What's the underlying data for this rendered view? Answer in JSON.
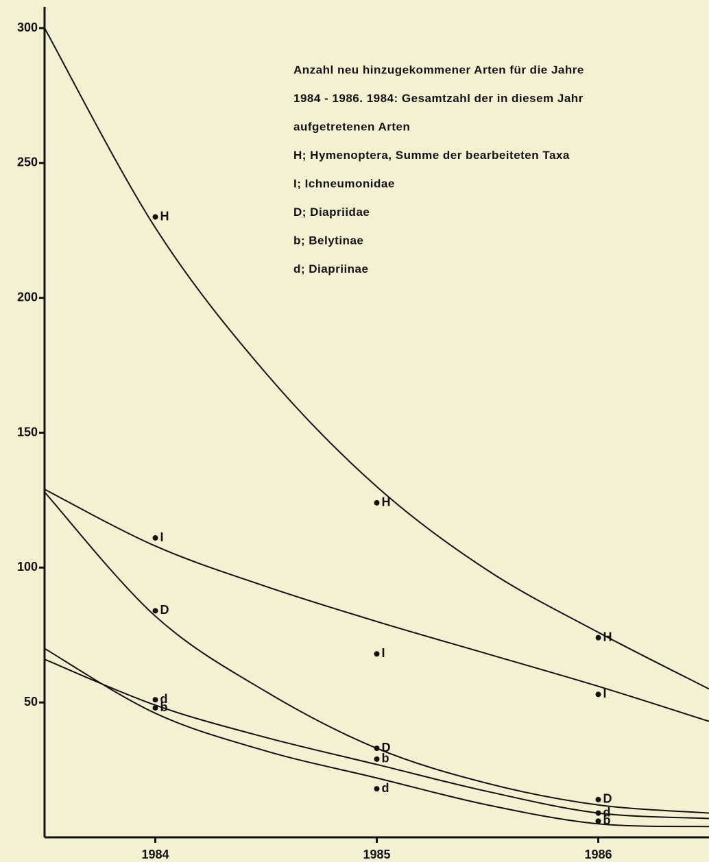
{
  "chart_data": {
    "type": "scatter",
    "annotation": [
      "Anzahl neu hinzugekommener Arten für die Jahre",
      "1984 - 1986. 1984: Gesamtzahl der in diesem Jahr",
      "aufgetretenen Arten",
      "H; Hymenoptera, Summe der bearbeiteten Taxa",
      "I; Ichneumonidae",
      "D; Diapriidae",
      "b; Belytinae",
      "d; Diapriinae"
    ],
    "x": [
      1984,
      1985,
      1986
    ],
    "series": [
      {
        "name": "H",
        "color": "#111111",
        "values": [
          230,
          124,
          74
        ]
      },
      {
        "name": "I",
        "color": "#111111",
        "values": [
          111,
          68,
          53
        ]
      },
      {
        "name": "D",
        "color": "#111111",
        "values": [
          84,
          33,
          14
        ]
      },
      {
        "name": "b",
        "color": "#111111",
        "values": [
          48,
          29,
          6
        ]
      },
      {
        "name": "d",
        "color": "#111111",
        "values": [
          51,
          18,
          9
        ]
      }
    ],
    "curves": {
      "x": [
        1983.5,
        1984,
        1984.5,
        1985,
        1985.5,
        1986,
        1986.5
      ],
      "lines": [
        [
          300,
          226,
          172,
          130,
          99,
          76,
          55
        ],
        [
          129,
          108,
          93,
          80,
          68,
          56,
          43
        ],
        [
          128,
          82,
          54,
          33,
          20,
          12,
          9
        ],
        [
          66,
          49,
          37,
          27,
          17,
          9,
          7
        ],
        [
          70,
          46,
          32,
          22,
          12,
          5,
          4
        ]
      ],
      "color": "#111111"
    },
    "xlim": [
      1983.5,
      1986.5
    ],
    "ylim": [
      0,
      300
    ],
    "xticks": [
      1984,
      1985,
      1986
    ],
    "yticks": [
      50,
      100,
      150,
      200,
      250,
      300
    ]
  }
}
